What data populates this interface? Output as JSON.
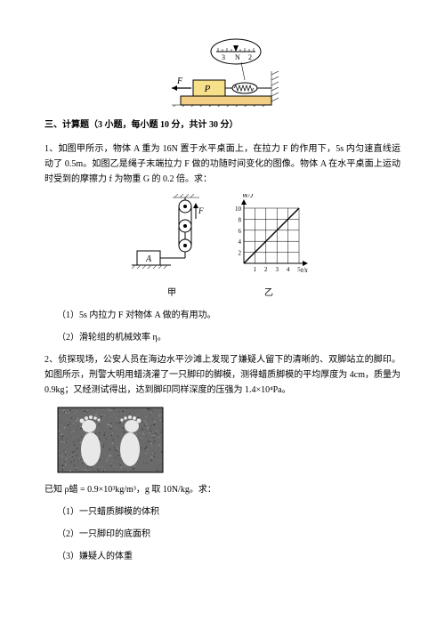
{
  "fig_top": {
    "label_P": "P",
    "label_F": "F",
    "scale_left": "3",
    "scale_right": "2",
    "scale_unit": "N",
    "colors": {
      "block": "#f7e08a",
      "base": "#f3cf85",
      "hatch": "#555",
      "line": "#000"
    }
  },
  "section_title": "三、计算题（3 小题，每小题 10 分，共计 30 分）",
  "q1": {
    "text": "1、如图甲所示，物体 A 重为 16N 置于水平桌面上，在拉力 F 的作用下，5s 内匀速直线运动了 0.5m。如图乙是绳子末端拉力 F 做的功随时间变化的图像。物体 A 在水平桌面上运动时受到的摩擦力 f 为物重 G 的 0.2 倍。求：",
    "sub1": "（1）5s 内拉力 F 对物体 A 做的有用功。",
    "sub2": "（2）滑轮组的机械效率 η。",
    "fig_jia": {
      "label_A": "A",
      "label_F": "F",
      "caption": "甲"
    },
    "fig_yi": {
      "caption": "乙",
      "ylabel": "W/J",
      "xlabel": "t/s",
      "xticks": [
        "1",
        "2",
        "3",
        "4",
        "5"
      ],
      "yticks": [
        "2",
        "4",
        "6",
        "8",
        "10"
      ],
      "line_start": [
        0,
        0
      ],
      "line_end": [
        5,
        10
      ],
      "grid_color": "#000",
      "bg": "#fff"
    }
  },
  "q2": {
    "text": "2、侦探现场，公安人员在海边水平沙滩上发现了嫌疑人留下的清晰的、双脚站立的脚印。如图所示，刑警大明用蜡浇灌了一只脚印的脚模，测得蜡质脚模的平均厚度为 4cm，质量为 0.9kg；又经测试得出，达到脚印同样深度的压强为 1.4×10⁴Pa。",
    "given": "已知 ρ蜡 = 0.9×10³kg/m³，g 取 10N/kg。求：",
    "sub1": "（1）一只蜡质脚模的体积",
    "sub2": "（2）一只脚印的底面积",
    "sub3": "（3）嫌疑人的体重",
    "img_colors": {
      "bg": "#6a6a6a",
      "foot": "#e8e8e8",
      "border": "#000"
    }
  }
}
